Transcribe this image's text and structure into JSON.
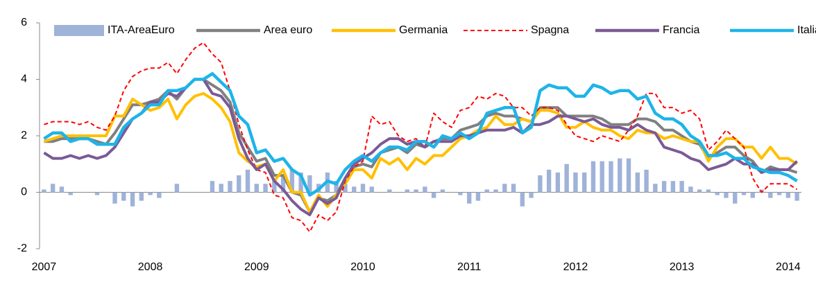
{
  "chart_data": {
    "type": "combo",
    "categories": [
      "2007",
      null,
      null,
      null,
      null,
      null,
      null,
      null,
      null,
      null,
      null,
      null,
      "2008",
      null,
      null,
      null,
      null,
      null,
      null,
      null,
      null,
      null,
      null,
      null,
      "2009",
      null,
      null,
      null,
      null,
      null,
      null,
      null,
      null,
      null,
      null,
      null,
      "2010",
      null,
      null,
      null,
      null,
      null,
      null,
      null,
      null,
      null,
      null,
      null,
      "2011",
      null,
      null,
      null,
      null,
      null,
      null,
      null,
      null,
      null,
      null,
      null,
      "2012",
      null,
      null,
      null,
      null,
      null,
      null,
      null,
      null,
      null,
      null,
      null,
      "2013",
      null,
      null,
      null,
      null,
      null,
      null,
      null,
      null,
      null,
      null,
      null,
      "2014",
      null
    ],
    "series": [
      {
        "name": "ITA-AreaEuro",
        "type": "bar",
        "color": "#9fb2d8",
        "values": [
          0.1,
          0.3,
          0.2,
          -0.1,
          0,
          0,
          -0.1,
          0,
          -0.4,
          -0.3,
          -0.5,
          -0.3,
          -0.1,
          -0.2,
          0,
          0.3,
          0,
          0,
          0,
          0.4,
          0.3,
          0.4,
          0.6,
          0.8,
          0.3,
          0.3,
          0.5,
          0.6,
          0.8,
          0.7,
          0.6,
          0.3,
          0.7,
          0.4,
          0.3,
          0.2,
          0.3,
          0.2,
          0,
          0.1,
          0,
          0.1,
          0.1,
          0.2,
          -0.2,
          0.1,
          0,
          -0.1,
          -0.4,
          -0.3,
          0.1,
          0.1,
          0.3,
          0.3,
          -0.5,
          -0.2,
          0.6,
          0.8,
          0.7,
          1.0,
          0.7,
          0.7,
          1.1,
          1.1,
          1.1,
          1.2,
          1.2,
          0.7,
          0.8,
          0.3,
          0.4,
          0.4,
          0.4,
          0.2,
          0.1,
          0.1,
          -0.1,
          -0.2,
          -0.4,
          -0.1,
          -0.2,
          0.1,
          -0.2,
          -0.1,
          -0.2,
          -0.3
        ]
      },
      {
        "name": "Area euro",
        "type": "line",
        "color": "#808080",
        "values": [
          1.8,
          1.8,
          1.9,
          1.9,
          1.9,
          1.9,
          1.8,
          1.7,
          2.1,
          2.6,
          3.1,
          3.1,
          3.2,
          3.3,
          3.6,
          3.3,
          3.7,
          4.0,
          4.0,
          3.8,
          3.6,
          3.2,
          2.1,
          1.6,
          1.1,
          1.2,
          0.6,
          0.6,
          0.0,
          -0.1,
          -0.7,
          -0.2,
          -0.3,
          -0.1,
          0.5,
          0.9,
          1.0,
          0.9,
          1.4,
          1.5,
          1.6,
          1.4,
          1.7,
          1.6,
          1.8,
          1.9,
          1.9,
          2.2,
          2.3,
          2.4,
          2.7,
          2.8,
          2.7,
          2.7,
          2.6,
          2.5,
          3.0,
          3.0,
          3.0,
          2.7,
          2.7,
          2.7,
          2.7,
          2.6,
          2.4,
          2.4,
          2.4,
          2.6,
          2.6,
          2.5,
          2.2,
          2.2,
          2.0,
          1.8,
          1.7,
          1.2,
          1.4,
          1.6,
          1.6,
          1.3,
          1.1,
          0.7,
          0.9,
          0.8,
          0.8,
          0.7
        ]
      },
      {
        "name": "Germania",
        "type": "line",
        "color": "#ffc000",
        "values": [
          1.8,
          1.9,
          2.0,
          2.0,
          2.0,
          2.0,
          2.0,
          2.0,
          2.7,
          2.7,
          3.3,
          3.1,
          2.9,
          3.0,
          3.3,
          2.6,
          3.1,
          3.4,
          3.5,
          3.3,
          3.0,
          2.5,
          1.4,
          1.1,
          0.9,
          1.0,
          0.4,
          0.8,
          0.0,
          0.0,
          -0.7,
          -0.1,
          -0.5,
          -0.1,
          0.3,
          0.8,
          0.8,
          0.5,
          1.2,
          1.0,
          1.2,
          0.8,
          1.2,
          1.0,
          1.3,
          1.3,
          1.6,
          1.9,
          2.0,
          2.2,
          2.3,
          2.7,
          2.4,
          2.4,
          2.6,
          2.5,
          2.9,
          2.9,
          2.8,
          2.3,
          2.3,
          2.5,
          2.3,
          2.2,
          2.2,
          2.0,
          1.9,
          2.2,
          2.1,
          2.1,
          1.9,
          2.0,
          1.9,
          1.8,
          1.8,
          1.1,
          1.6,
          1.9,
          1.9,
          1.6,
          1.6,
          1.2,
          1.6,
          1.2,
          1.2,
          1.0
        ]
      },
      {
        "name": "Spagna",
        "type": "line",
        "dash": true,
        "color": "#ff0000",
        "values": [
          2.4,
          2.5,
          2.5,
          2.5,
          2.4,
          2.5,
          2.3,
          2.2,
          2.7,
          3.6,
          4.1,
          4.3,
          4.4,
          4.4,
          4.6,
          4.2,
          4.7,
          5.1,
          5.3,
          4.9,
          4.6,
          3.6,
          2.4,
          1.5,
          0.8,
          0.7,
          -0.1,
          -0.2,
          -0.9,
          -1.0,
          -1.4,
          -0.8,
          -1.0,
          -0.7,
          0.4,
          0.9,
          1.1,
          2.7,
          2.4,
          2.5,
          2.0,
          1.8,
          1.9,
          1.6,
          2.8,
          2.5,
          2.3,
          2.9,
          3.0,
          3.4,
          3.3,
          3.5,
          3.4,
          3.0,
          3.0,
          2.7,
          3.0,
          3.0,
          2.9,
          2.4,
          2.0,
          1.9,
          1.8,
          2.0,
          1.9,
          1.8,
          2.2,
          2.7,
          3.5,
          3.5,
          3.0,
          3.0,
          2.8,
          2.9,
          2.6,
          1.5,
          1.8,
          2.2,
          1.9,
          1.6,
          0.5,
          0.0,
          0.3,
          0.3,
          0.3,
          0.1
        ]
      },
      {
        "name": "Francia",
        "type": "line",
        "color": "#7a5a96",
        "values": [
          1.4,
          1.2,
          1.2,
          1.3,
          1.2,
          1.3,
          1.2,
          1.3,
          1.6,
          2.1,
          2.6,
          2.8,
          3.2,
          3.2,
          3.5,
          3.4,
          3.7,
          4.0,
          4.0,
          3.5,
          3.4,
          3.0,
          1.9,
          1.2,
          0.8,
          1.0,
          0.4,
          0.1,
          -0.3,
          -0.6,
          -0.8,
          -0.2,
          -0.4,
          -0.2,
          0.5,
          1.0,
          1.2,
          1.4,
          1.7,
          1.9,
          1.9,
          1.7,
          1.8,
          1.6,
          1.8,
          1.8,
          1.8,
          2.0,
          2.0,
          2.1,
          2.2,
          2.2,
          2.2,
          2.3,
          2.1,
          2.4,
          2.4,
          2.5,
          2.7,
          2.7,
          2.6,
          2.5,
          2.6,
          2.4,
          2.3,
          2.3,
          2.2,
          2.4,
          2.2,
          2.1,
          1.6,
          1.5,
          1.4,
          1.2,
          1.1,
          0.8,
          0.9,
          1.0,
          1.2,
          1.0,
          1.0,
          0.7,
          0.8,
          0.8,
          0.8,
          1.1
        ]
      },
      {
        "name": "Italia",
        "type": "line",
        "color": "#1eb4e8",
        "values": [
          1.9,
          2.1,
          2.1,
          1.8,
          1.9,
          1.9,
          1.7,
          1.7,
          1.7,
          2.3,
          2.6,
          2.8,
          3.1,
          3.1,
          3.6,
          3.6,
          3.7,
          4.0,
          4.0,
          4.2,
          3.9,
          3.6,
          2.7,
          2.4,
          1.4,
          1.5,
          1.1,
          1.2,
          0.8,
          0.6,
          -0.1,
          0.1,
          0.4,
          0.3,
          0.8,
          1.1,
          1.3,
          1.1,
          1.4,
          1.6,
          1.6,
          1.5,
          1.8,
          1.8,
          1.6,
          2.0,
          1.9,
          2.1,
          1.9,
          2.1,
          2.8,
          2.9,
          3.0,
          3.0,
          2.1,
          2.3,
          3.6,
          3.8,
          3.7,
          3.7,
          3.4,
          3.4,
          3.8,
          3.7,
          3.5,
          3.6,
          3.6,
          3.3,
          3.4,
          2.8,
          2.6,
          2.6,
          2.4,
          2.0,
          1.8,
          1.3,
          1.3,
          1.4,
          1.2,
          1.2,
          0.9,
          0.8,
          0.7,
          0.7,
          0.6,
          0.4
        ]
      }
    ],
    "ylim": [
      -2,
      6
    ],
    "yticks": [
      -2,
      0,
      2,
      4,
      6
    ]
  }
}
